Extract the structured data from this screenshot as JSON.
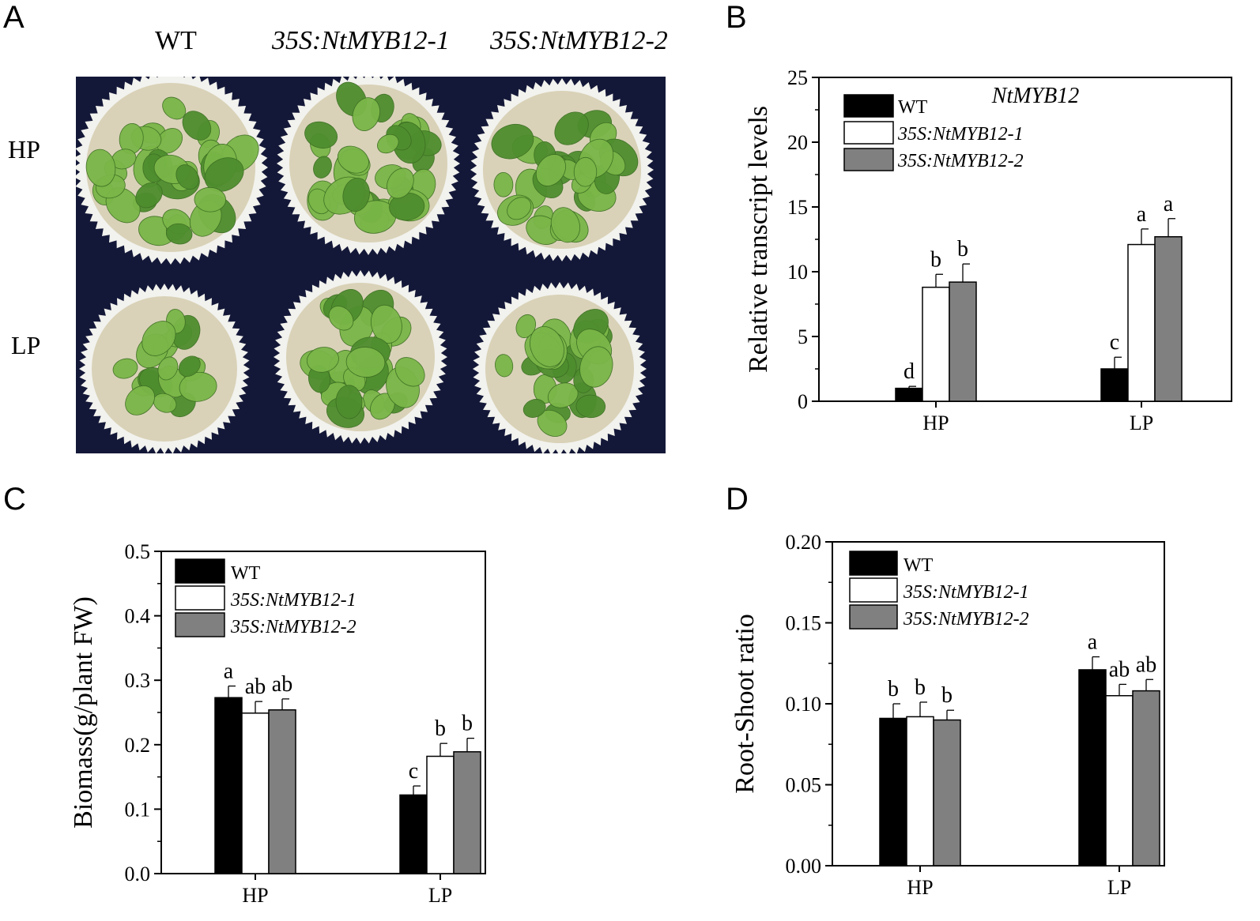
{
  "panel_labels": {
    "a": "A",
    "b": "B",
    "c": "C",
    "d": "D"
  },
  "photo": {
    "column_headers": [
      "WT",
      "35S:NtMYB12-1",
      "35S:NtMYB12-2"
    ],
    "row_labels": [
      "HP",
      "LP"
    ],
    "colors": {
      "background": "#141838",
      "pot": "#f2f2ee",
      "soil": "#d9d2b8",
      "leaf": "#7ab648",
      "leaf_dark": "#4e8d2e"
    }
  },
  "chart_data": [
    {
      "id": "B",
      "type": "bar",
      "title": "NtMYB12",
      "xlabel": "",
      "ylabel": "Relative transcript levels",
      "categories": [
        "HP",
        "LP"
      ],
      "ylim": [
        0,
        25
      ],
      "yticks": [
        0,
        5,
        10,
        15,
        20,
        25
      ],
      "ytick_labels": [
        "0",
        "5",
        "10",
        "15",
        "20",
        "25"
      ],
      "series": [
        {
          "name": "WT",
          "color": "#000000",
          "values": [
            1.0,
            2.5
          ],
          "errors": [
            0.15,
            0.9
          ],
          "letters": [
            "d",
            "c"
          ]
        },
        {
          "name": "35S:NtMYB12-1",
          "color": "#ffffff",
          "values": [
            8.8,
            12.1
          ],
          "errors": [
            1.0,
            1.2
          ],
          "letters": [
            "b",
            "a"
          ]
        },
        {
          "name": "35S:NtMYB12-2",
          "color": "#808080",
          "values": [
            9.2,
            12.7
          ],
          "errors": [
            1.4,
            1.4
          ],
          "letters": [
            "b",
            "a"
          ]
        }
      ],
      "legend": "top-left"
    },
    {
      "id": "C",
      "type": "bar",
      "title": "",
      "xlabel": "",
      "ylabel": "Biomass(g/plant FW)",
      "categories": [
        "HP",
        "LP"
      ],
      "ylim": [
        0,
        0.5
      ],
      "yticks": [
        0,
        0.1,
        0.2,
        0.3,
        0.4,
        0.5
      ],
      "ytick_labels": [
        "0.0",
        "0.1",
        "0.2",
        "0.3",
        "0.4",
        "0.5"
      ],
      "series": [
        {
          "name": "WT",
          "color": "#000000",
          "values": [
            0.273,
            0.122
          ],
          "errors": [
            0.018,
            0.014
          ],
          "letters": [
            "a",
            "c"
          ]
        },
        {
          "name": "35S:NtMYB12-1",
          "color": "#ffffff",
          "values": [
            0.249,
            0.182
          ],
          "errors": [
            0.018,
            0.02
          ],
          "letters": [
            "ab",
            "b"
          ]
        },
        {
          "name": "35S:NtMYB12-2",
          "color": "#808080",
          "values": [
            0.254,
            0.189
          ],
          "errors": [
            0.017,
            0.021
          ],
          "letters": [
            "ab",
            "b"
          ]
        }
      ],
      "legend": "top-left"
    },
    {
      "id": "D",
      "type": "bar",
      "title": "",
      "xlabel": "",
      "ylabel": "Root-Shoot ratio",
      "categories": [
        "HP",
        "LP"
      ],
      "ylim": [
        0,
        0.2
      ],
      "yticks": [
        0,
        0.05,
        0.1,
        0.15,
        0.2
      ],
      "ytick_labels": [
        "0.00",
        "0.05",
        "0.10",
        "0.15",
        "0.20"
      ],
      "series": [
        {
          "name": "WT",
          "color": "#000000",
          "values": [
            0.091,
            0.121
          ],
          "errors": [
            0.009,
            0.008
          ],
          "letters": [
            "b",
            "a"
          ]
        },
        {
          "name": "35S:NtMYB12-1",
          "color": "#ffffff",
          "values": [
            0.092,
            0.105
          ],
          "errors": [
            0.009,
            0.007
          ],
          "letters": [
            "b",
            "ab"
          ]
        },
        {
          "name": "35S:NtMYB12-2",
          "color": "#808080",
          "values": [
            0.09,
            0.108
          ],
          "errors": [
            0.006,
            0.007
          ],
          "letters": [
            "b",
            "ab"
          ]
        }
      ],
      "legend": "top-left"
    }
  ]
}
